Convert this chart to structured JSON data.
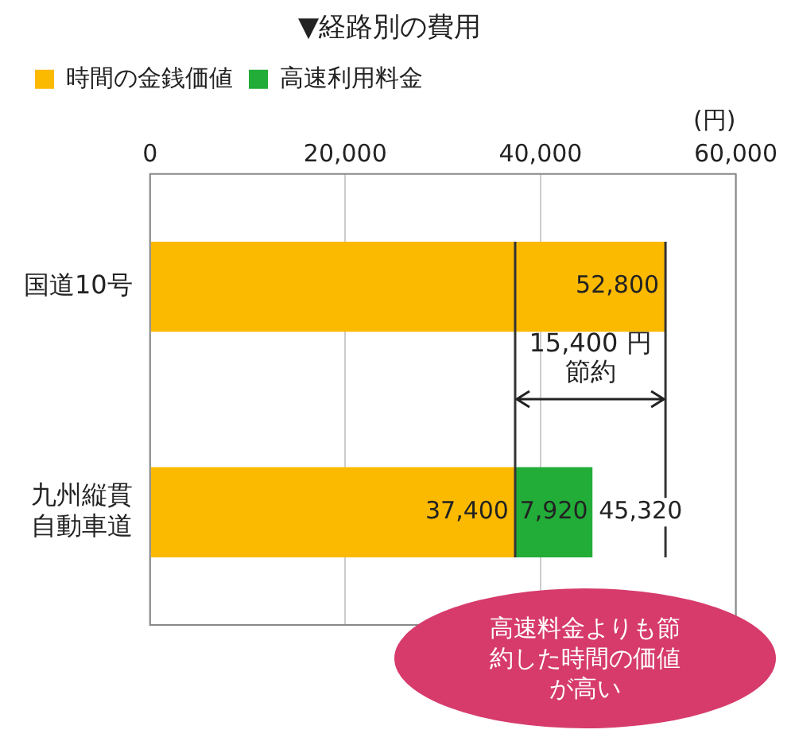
{
  "chart_data": {
    "type": "bar",
    "orientation": "horizontal",
    "stacked": true,
    "title": "▼経路別の費用",
    "xlabel": "(円)",
    "categories": [
      "国道10号",
      "九州縦貫自動車道"
    ],
    "series": [
      {
        "name": "時間の金銭価値",
        "color": "#fbb900",
        "values": [
          52800,
          37400
        ],
        "value_labels": [
          "52,800",
          "37,400"
        ]
      },
      {
        "name": "高速利用料金",
        "color": "#22ac38",
        "values": [
          null,
          7920
        ],
        "value_labels": [
          null,
          "7,920"
        ]
      }
    ],
    "xlim": [
      0,
      60000
    ],
    "xticks": [
      {
        "value": 0,
        "label": "0"
      },
      {
        "value": 20000,
        "label": "20,000"
      },
      {
        "value": 40000,
        "label": "40,000"
      },
      {
        "value": 60000,
        "label": "60,000"
      }
    ],
    "grid": "x",
    "legend": "top",
    "totals": [
      null,
      "45,320"
    ],
    "ref_lines": [
      {
        "axis": "x",
        "value": 37400,
        "color": "#333333"
      },
      {
        "axis": "x",
        "value": 52800,
        "color": "#333333"
      }
    ],
    "annotations": [
      "15,400 円節約",
      "高速料金よりも節約した時間の価値が高い"
    ]
  }
}
